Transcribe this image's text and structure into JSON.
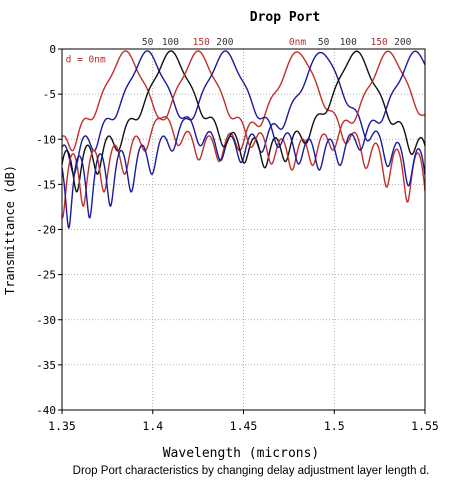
{
  "chart_data": {
    "type": "line",
    "title": "Drop Port",
    "xlabel": "Wavelength (microns)",
    "ylabel": "Transmittance (dB)",
    "caption": "Drop Port characteristics by changing delay adjustment layer length d.",
    "xlim": [
      1.35,
      1.55
    ],
    "ylim": [
      -40,
      0
    ],
    "xticks": [
      "1.35",
      "1.4",
      "1.45",
      "1.5",
      "1.55"
    ],
    "yticks": [
      "0",
      "-5",
      "-10",
      "-15",
      "-20",
      "-25",
      "-30",
      "-35",
      "-40"
    ],
    "grid": "dotted",
    "annotations": [
      {
        "text": "d = 0nm",
        "color": "#b03030",
        "x": 1.352,
        "y": -1.5
      },
      {
        "text": "50",
        "color": "#333333",
        "x": 1.394,
        "y": 0.8
      },
      {
        "text": "100",
        "color": "#333333",
        "x": 1.405,
        "y": 0.8
      },
      {
        "text": "150",
        "color": "#b03030",
        "x": 1.422,
        "y": 0.8
      },
      {
        "text": "200",
        "color": "#333333",
        "x": 1.435,
        "y": 0.8
      },
      {
        "text": "0nm",
        "color": "#b03030",
        "x": 1.475,
        "y": 0.8
      },
      {
        "text": "50",
        "color": "#333333",
        "x": 1.491,
        "y": 0.8
      },
      {
        "text": "100",
        "color": "#333333",
        "x": 1.503,
        "y": 0.8
      },
      {
        "text": "150",
        "color": "#b03030",
        "x": 1.52,
        "y": 0.8
      },
      {
        "text": "200",
        "color": "#333333",
        "x": 1.533,
        "y": 0.8
      }
    ],
    "series": [
      {
        "color": "#c0302a",
        "peaks": [
          1.385,
          1.48
        ]
      },
      {
        "color": "#1a1a9e",
        "peaks": [
          1.397,
          1.493
        ]
      },
      {
        "color": "#111111",
        "peaks": [
          1.41,
          1.512
        ]
      },
      {
        "color": "#c0302a",
        "peaks": [
          1.425,
          1.53
        ]
      },
      {
        "color": "#1a1a9e",
        "peaks": [
          1.44,
          1.545
        ]
      }
    ]
  }
}
